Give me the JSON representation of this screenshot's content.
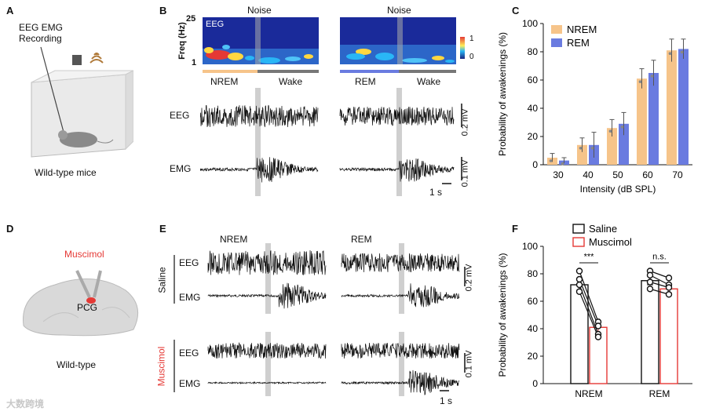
{
  "panels": {
    "A": {
      "letter": "A",
      "recording_label": "EEG EMG\nRecording",
      "caption": "Wild-type mice"
    },
    "B": {
      "letter": "B",
      "noise_label_left": "Noise",
      "noise_label_right": "Noise",
      "spectrogram_ylabel": "Freq (Hz)",
      "spectrogram_ytop": "25",
      "spectrogram_ybottom": "1",
      "spectrogram_tag": "EEG",
      "colorbar_max": "1",
      "colorbar_min": "0",
      "state_left_from": "NREM",
      "state_left_to": "Wake",
      "state_right_from": "REM",
      "state_right_to": "Wake",
      "eeg_label": "EEG",
      "emg_label": "EMG",
      "eeg_scale": "0.2 mV",
      "emg_scale": "0.1 mV",
      "time_scale": "1 s",
      "colors": {
        "nrem": "#f6c48a",
        "rem": "#6a7be0",
        "wake": "#777777"
      }
    },
    "C": {
      "letter": "C",
      "chart_data": {
        "type": "bar",
        "title": "",
        "xlabel": "Intensity (dB SPL)",
        "ylabel": "Probability of awakenings (%)",
        "categories": [
          "30",
          "40",
          "50",
          "60",
          "70"
        ],
        "ylim": [
          0,
          100
        ],
        "yticks": [
          "0",
          "20",
          "40",
          "60",
          "80",
          "100"
        ],
        "legend_position": "top-left",
        "series": [
          {
            "name": "NREM",
            "color": "#f6c48a",
            "values": [
              5,
              14,
              26,
              61,
              81
            ],
            "errors": [
              3,
              5,
              6,
              7,
              8
            ]
          },
          {
            "name": "REM",
            "color": "#6a7be0",
            "values": [
              3,
              14,
              29,
              65,
              82
            ],
            "errors": [
              2,
              9,
              8,
              9,
              7
            ]
          }
        ]
      }
    },
    "D": {
      "letter": "D",
      "drug_label": "Muscimol",
      "region_label": "PCG",
      "caption": "Wild-type"
    },
    "E": {
      "letter": "E",
      "state_left": "NREM",
      "state_right": "REM",
      "group_top": "Saline",
      "group_bottom": "Muscimol",
      "eeg_label": "EEG",
      "emg_label": "EMG",
      "top_scale": "0.2 mV",
      "bottom_scale": "0.1 mV",
      "time_scale": "1 s"
    },
    "F": {
      "letter": "F",
      "chart_data": {
        "type": "bar",
        "ylabel": "Probability of awakenings (%)",
        "categories": [
          "NREM",
          "REM"
        ],
        "ylim": [
          0,
          100
        ],
        "yticks": [
          "0",
          "20",
          "40",
          "60",
          "80",
          "100"
        ],
        "legend_position": "top",
        "series": [
          {
            "name": "Saline",
            "color": "#111111",
            "values": [
              72,
              75
            ],
            "errors": [
              4,
              3
            ]
          },
          {
            "name": "Muscimol",
            "color": "#e53935",
            "values": [
              41,
              69
            ],
            "errors": [
              5,
              3
            ]
          }
        ],
        "individual_points": {
          "NREM": {
            "Saline": [
              82,
              76,
              72,
              67
            ],
            "Muscimol": [
              45,
              42,
              36,
              34
            ]
          },
          "REM": {
            "Saline": [
              82,
              79,
              74,
              69
            ],
            "Muscimol": [
              77,
              72,
              70,
              65
            ]
          }
        },
        "significance": [
          "***",
          "n.s."
        ]
      }
    }
  },
  "watermark": "大数跨境"
}
